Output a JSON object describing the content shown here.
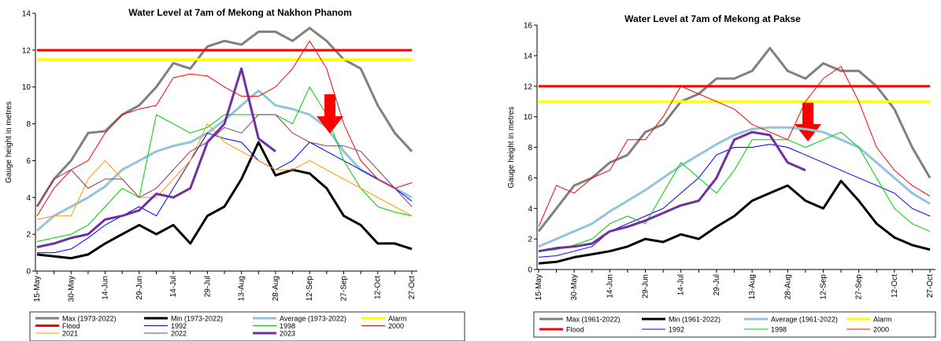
{
  "chart_data": [
    {
      "type": "line",
      "title": "Water Level at 7am of Mekong at Nakhon Phanom",
      "y_label": "Gauge height in metres",
      "categories": [
        "15-May",
        null,
        "30-May",
        null,
        "14-Jun",
        null,
        "29-Jun",
        null,
        "14-Jul",
        null,
        "29-Jul",
        null,
        "13-Aug",
        null,
        "28-Aug",
        null,
        "12-Sep",
        null,
        "27-Sep",
        null,
        "12-Oct",
        null,
        "27-Oct"
      ],
      "ylim": [
        0,
        14
      ],
      "yticks": [
        0,
        2,
        4,
        6,
        8,
        10,
        12,
        14
      ],
      "series": [
        {
          "name": "Max (1973-2022)",
          "color": "#808080",
          "line_width": 3,
          "values": [
            3.5,
            5,
            6,
            7.5,
            7.6,
            8.5,
            9,
            10,
            11.3,
            11,
            12.2,
            12.5,
            12.3,
            13,
            13,
            12.5,
            13.2,
            12.5,
            11.5,
            11,
            9,
            7.5,
            6.5
          ]
        },
        {
          "name": "Min (1973-2022)",
          "color": "#000000",
          "line_width": 3,
          "values": [
            0.9,
            0.8,
            0.7,
            0.9,
            1.5,
            2,
            2.5,
            2,
            2.5,
            1.5,
            3,
            3.5,
            5,
            7,
            5.2,
            5.5,
            5.3,
            4.5,
            3,
            2.5,
            1.5,
            1.5,
            1.2
          ]
        },
        {
          "name": "Average (1973-2022)",
          "color": "#92c5d9",
          "line_width": 3,
          "values": [
            2.2,
            3,
            3.5,
            4,
            4.6,
            5.5,
            6,
            6.5,
            6.8,
            7,
            7.5,
            8.2,
            9,
            9.8,
            9,
            8.8,
            8.5,
            7.8,
            6.5,
            5.5,
            5,
            4.5,
            4
          ]
        },
        {
          "name": "Alarm",
          "color": "#ffff00",
          "line_width": 3,
          "values": [
            11.5,
            11.5,
            11.5,
            11.5,
            11.5,
            11.5,
            11.5,
            11.5,
            11.5,
            11.5,
            11.5,
            11.5,
            11.5,
            11.5,
            11.5,
            11.5,
            11.5,
            11.5,
            11.5,
            11.5,
            11.5,
            11.5,
            11.5
          ]
        },
        {
          "name": "Flood",
          "color": "#ff0000",
          "line_width": 3,
          "values": [
            12,
            12,
            12,
            12,
            12,
            12,
            12,
            12,
            12,
            12,
            12,
            12,
            12,
            12,
            12,
            12,
            12,
            12,
            12,
            12,
            12,
            12,
            12
          ]
        },
        {
          "name": "1992",
          "color": "#0000ff",
          "line_width": 1,
          "values": [
            1,
            1,
            1.2,
            1.8,
            2.5,
            3,
            3.5,
            3,
            4.5,
            6,
            7.5,
            7.2,
            7,
            6,
            5.5,
            6,
            7,
            6.5,
            6,
            5.5,
            5,
            4.5,
            3.8
          ]
        },
        {
          "name": "1998",
          "color": "#00cc00",
          "line_width": 1,
          "values": [
            1.6,
            1.8,
            2,
            2.5,
            3.5,
            4.5,
            4,
            8.5,
            8,
            7.5,
            7.8,
            8.5,
            8.5,
            8.5,
            8.5,
            8,
            10,
            8.5,
            6,
            4.5,
            3.5,
            3.2,
            3
          ]
        },
        {
          "name": "2000",
          "color": "#ff0000",
          "line_width": 1,
          "values": [
            3,
            4.5,
            5.5,
            6,
            7.5,
            8.5,
            8.8,
            9,
            10.5,
            10.7,
            10.6,
            10,
            9.5,
            9.5,
            10,
            11,
            12.5,
            11,
            8,
            6,
            5,
            4.5,
            4.8
          ]
        },
        {
          "name": "2021",
          "color": "#ff9900",
          "line_width": 1,
          "values": [
            2.8,
            3,
            3,
            5,
            6,
            5,
            4,
            4,
            5,
            6,
            8,
            7,
            6.5,
            6,
            5.5,
            5.5,
            6,
            5.5,
            5,
            4.5,
            4,
            3.5,
            3
          ]
        },
        {
          "name": "2022",
          "color": "#993366",
          "line_width": 1,
          "values": [
            3.5,
            5,
            5.5,
            4.5,
            5,
            5,
            4,
            4.5,
            5.5,
            6.5,
            7,
            7.8,
            7.5,
            8.5,
            8.5,
            7.5,
            7,
            6.8,
            6.8,
            6.5,
            5.5,
            4.5,
            3.5
          ]
        },
        {
          "name": "2023",
          "color": "#7030a0",
          "line_width": 3,
          "values": [
            1.3,
            1.5,
            1.8,
            2,
            2.8,
            3,
            3.3,
            4.2,
            4,
            4.5,
            7,
            8,
            11,
            7.2,
            6.5,
            null,
            null,
            null,
            null,
            null,
            null,
            null,
            null
          ]
        }
      ]
    },
    {
      "type": "line",
      "title": "Water Level at 7am of Mekong at Pakse",
      "y_label": "Gauge height in metres",
      "categories": [
        "15-May",
        null,
        "30-May",
        null,
        "14-Jun",
        null,
        "29-Jun",
        null,
        "14-Jul",
        null,
        "29-Jul",
        null,
        "13-Aug",
        null,
        "28-Aug",
        null,
        "12-Sep",
        null,
        "27-Sep",
        null,
        "12-Oct",
        null,
        "27-Oct"
      ],
      "ylim": [
        0,
        16
      ],
      "yticks": [
        0,
        2,
        4,
        6,
        8,
        10,
        12,
        14,
        16
      ],
      "series": [
        {
          "name": "Max (1961-2022)",
          "color": "#808080",
          "line_width": 3,
          "values": [
            2.5,
            4,
            5.5,
            6,
            7,
            7.5,
            9,
            9.5,
            11,
            11.5,
            12.5,
            12.5,
            13,
            14.5,
            13,
            12.5,
            13.5,
            13,
            13,
            12,
            10.5,
            8,
            6
          ]
        },
        {
          "name": "Min (1961-2022)",
          "color": "#000000",
          "line_width": 3,
          "values": [
            0.4,
            0.5,
            0.8,
            1,
            1.2,
            1.5,
            2,
            1.8,
            2.3,
            2,
            2.8,
            3.5,
            4.5,
            5,
            5.5,
            4.5,
            4,
            5.8,
            4.5,
            3,
            2.1,
            1.6,
            1.3
          ]
        },
        {
          "name": "Average (1961-2022)",
          "color": "#92c5d9",
          "line_width": 3,
          "values": [
            1.5,
            2,
            2.5,
            3,
            3.8,
            4.5,
            5.2,
            6,
            6.8,
            7.5,
            8.2,
            8.8,
            9.2,
            9.3,
            9.3,
            9.2,
            9,
            8.5,
            8,
            7,
            6,
            5,
            4.3
          ]
        },
        {
          "name": "Alarm",
          "color": "#ffff00",
          "line_width": 3,
          "values": [
            11,
            11,
            11,
            11,
            11,
            11,
            11,
            11,
            11,
            11,
            11,
            11,
            11,
            11,
            11,
            11,
            11,
            11,
            11,
            11,
            11,
            11,
            11
          ]
        },
        {
          "name": "Flood",
          "color": "#ff0000",
          "line_width": 3,
          "values": [
            12,
            12,
            12,
            12,
            12,
            12,
            12,
            12,
            12,
            12,
            12,
            12,
            12,
            12,
            12,
            12,
            12,
            12,
            12,
            12,
            12,
            12,
            12
          ]
        },
        {
          "name": "1992",
          "color": "#0000ff",
          "line_width": 1,
          "values": [
            0.8,
            0.9,
            1.2,
            1.5,
            2.5,
            3,
            3.5,
            4,
            5,
            6,
            7.5,
            8,
            8,
            8.2,
            8,
            7.5,
            7,
            6.5,
            6,
            5.5,
            5,
            4,
            3.5
          ]
        },
        {
          "name": "1998",
          "color": "#00cc00",
          "line_width": 1,
          "values": [
            1.2,
            1.3,
            1.6,
            2,
            3,
            3.5,
            3,
            5,
            7,
            6,
            5,
            6.5,
            8.5,
            8.5,
            8.5,
            8,
            8.5,
            9,
            8,
            6,
            4,
            3,
            2.5
          ]
        },
        {
          "name": "2000",
          "color": "#ff0000",
          "line_width": 1,
          "values": [
            2.8,
            5.5,
            5,
            6,
            6.5,
            8.5,
            8.5,
            10,
            12,
            11.5,
            11,
            10.5,
            9.5,
            9,
            8.5,
            11,
            12.5,
            13.3,
            11,
            8,
            6.5,
            5.5,
            4.8
          ]
        },
        {
          "color": "#7030a0",
          "line_width": 3,
          "values": [
            1.2,
            1.4,
            1.5,
            1.7,
            2.5,
            2.8,
            3.2,
            3.7,
            4.2,
            4.5,
            6,
            8.5,
            9,
            8.8,
            7,
            6.5,
            null,
            null,
            null,
            null,
            null,
            null,
            null
          ]
        }
      ]
    }
  ]
}
